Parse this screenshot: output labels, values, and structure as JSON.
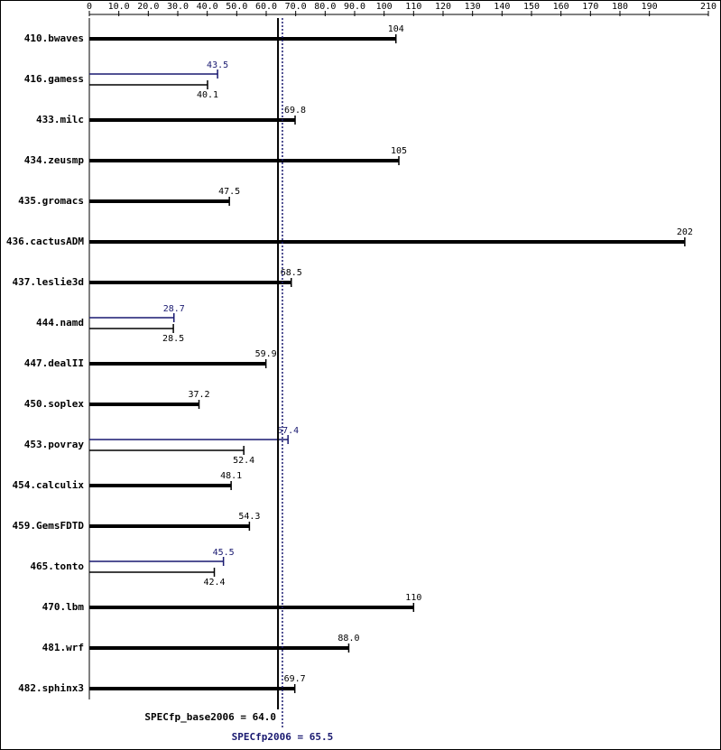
{
  "chart_data": {
    "type": "bar",
    "orientation": "horizontal",
    "categories": [
      "410.bwaves",
      "416.gamess",
      "433.milc",
      "434.zeusmp",
      "435.gromacs",
      "436.cactusADM",
      "437.leslie3d",
      "444.namd",
      "447.dealII",
      "450.soplex",
      "453.povray",
      "454.calculix",
      "459.GemsFDTD",
      "465.tonto",
      "470.lbm",
      "481.wrf",
      "482.sphinx3"
    ],
    "series": [
      {
        "color": "#000000",
        "values": [
          104,
          40.1,
          69.8,
          105,
          47.5,
          202,
          68.5,
          28.5,
          59.9,
          37.2,
          52.4,
          48.1,
          54.3,
          42.4,
          110,
          88.0,
          69.7
        ],
        "value_labels": [
          "104",
          "40.1",
          "69.8",
          "105",
          "47.5",
          "202",
          "68.5",
          "28.5",
          "59.9",
          "37.2",
          "52.4",
          "48.1",
          "54.3",
          "42.4",
          "110",
          "88.0",
          "69.7"
        ]
      },
      {
        "color": "#191970",
        "values": [
          null,
          43.5,
          null,
          null,
          null,
          null,
          null,
          28.7,
          null,
          null,
          67.4,
          null,
          null,
          45.5,
          null,
          null,
          null
        ]
      }
    ],
    "xlim": [
      0,
      210
    ],
    "xticks": [
      0,
      {
        "value": 10,
        "label": "10.0"
      },
      {
        "value": 20,
        "label": "20.0"
      },
      {
        "value": 30,
        "label": "30.0"
      },
      {
        "value": 40,
        "label": "40.0"
      },
      {
        "value": 50,
        "label": "50.0"
      },
      {
        "value": 60,
        "label": "60.0"
      },
      {
        "value": 70,
        "label": "70.0"
      },
      {
        "value": 80,
        "label": "80.0"
      },
      {
        "value": 90,
        "label": "90.0"
      },
      100,
      110,
      120,
      130,
      140,
      150,
      160,
      170,
      180,
      190,
      210
    ],
    "reference_lines": [
      {
        "label": "SPECfp_base2006 = 64.0",
        "value": 64.0,
        "color": "#000000",
        "style": "solid"
      },
      {
        "label": "SPECfp2006 = 65.5",
        "value": 65.5,
        "color": "#191970",
        "style": "dotted"
      }
    ]
  }
}
